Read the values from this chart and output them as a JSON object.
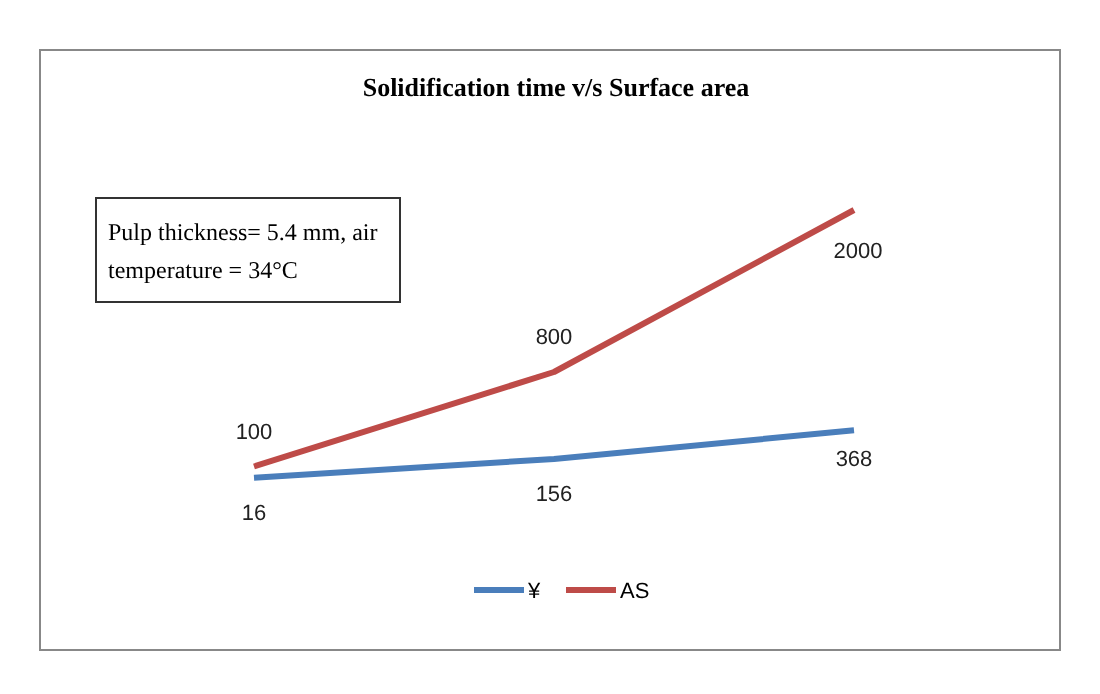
{
  "chart_data": {
    "type": "line",
    "title": "Solidification time v/s Surface area",
    "categories": [
      null,
      null,
      null
    ],
    "data_labels": true,
    "legend": "bottom",
    "marker": "none",
    "line_style": "solid",
    "annotations": [
      "Pulp thickness= 5.4 mm, air temperature = 34°C"
    ],
    "series": [
      {
        "name": "¥",
        "color": "#4a7ebb",
        "values": [
          16,
          156,
          368
        ]
      },
      {
        "name": "AS",
        "color": "#be4b48",
        "values": [
          100,
          800,
          2000
        ]
      }
    ]
  }
}
